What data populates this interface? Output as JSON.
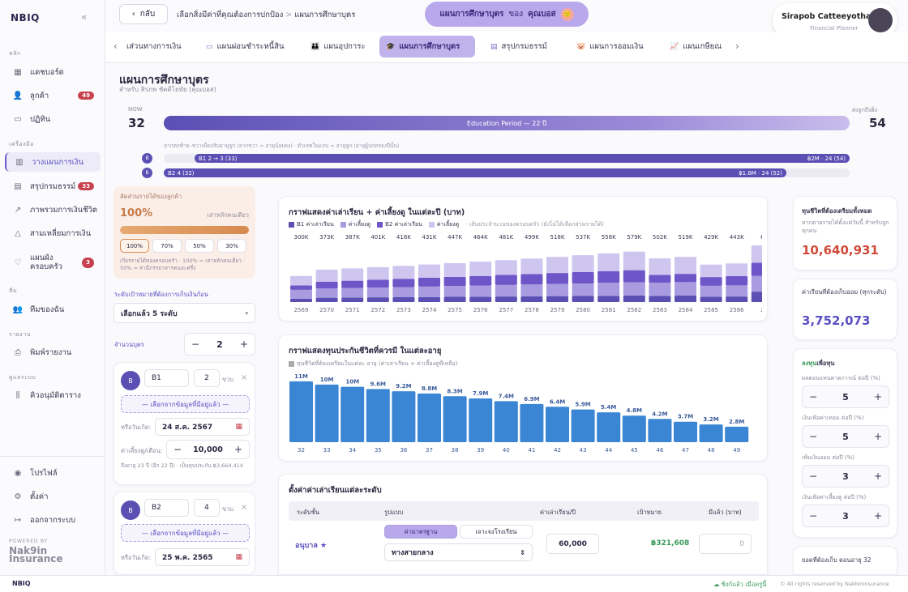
{
  "brand": "NBIQ",
  "sidebar": {
    "sec_main": "หลัก",
    "items_main": [
      {
        "label": "แดชบอร์ด"
      },
      {
        "label": "ลูกค้า",
        "count": "49"
      },
      {
        "label": "ปฏิทิน"
      }
    ],
    "sec_tools": "เครื่องมือ",
    "items_tools": [
      {
        "label": "วางแผนการเงิน"
      },
      {
        "label": "สรุปกรมธรรม์",
        "count": "33"
      },
      {
        "label": "ภาพรวมการเงินชีวิต"
      },
      {
        "label": "สามเหลี่ยมการเงิน"
      },
      {
        "label": "แผนผัง ครอบครัว",
        "count": "3"
      }
    ],
    "sec_team": "ทีม",
    "team": "ทีมของฉัน",
    "sec_report": "รายงาน",
    "report": "พิมพ์รายงาน",
    "sec_system": "ดูแลระบบ",
    "system": "คิวอนุมัติตาราง",
    "profile": "โปรไฟล์",
    "settings": "ตั้งค่า",
    "logout": "ออกจากระบบ",
    "powered": "POWERED BY",
    "nakin": "Nak9in Insurance"
  },
  "header": {
    "back": "กลับ",
    "crumb1": "เลือกสิ่งมีค่าที่คุณต้องการปกป้อง",
    "crumb_sep": ">",
    "crumb2": "แผนการศึกษาบุตร",
    "pill_a": "แผนการศึกษาบุตร",
    "pill_b": "ของ",
    "pill_c": "คุณบอส",
    "pill_emoji": "🙂",
    "user_name": "Sirapob Catteeyothai",
    "user_role": "Financial Planner"
  },
  "tabs": [
    "เส่วนทางการเงิน",
    "แผนผ่อนชำระหนี้สิน",
    "แผนอุปการะ",
    "แผนการศึกษาบุตร",
    "สรุปกรมธรรม์",
    "แผนการออมเงิน",
    "แผนเกษียณ"
  ],
  "page": {
    "title": "แผนการศึกษาบุตร",
    "subtitle": "สำหรับ สิรภพ ชัตตีโยทัย (คุณบอส)"
  },
  "timeline": {
    "now_label": "NOW",
    "now_value": "32",
    "end_label": "ส่งลูกถึงฝั่ง",
    "end_value": "54",
    "period": "Education Period — 22 ปี",
    "hint": "ลากตกซ้าย–ขวาเพื่อปรับอายุลูก (ลากขวา = อายุน้อยลง) · ตัวเลขในแถบ = อายุลูก (อายุผู้ปกครองปีนั้น)",
    "rows": [
      {
        "dot": "B",
        "left": "B1 2 → 3 (33)",
        "right": "฿2M · 24 (54)"
      },
      {
        "dot": "B",
        "left": "B2 4 (32)",
        "right": "฿1.8M · 24 (52)"
      }
    ]
  },
  "left": {
    "share_title": "สัดส่วนรายได้ของลูกค้า",
    "share_value": "100%",
    "share_side": "เสาหลักคนเดียว",
    "share_opts": [
      "100%",
      "70%",
      "50%",
      "30%"
    ],
    "share_note": "เกียรรายได้ของครอบครัว · 100% = เสาหลักคนเดียว · 50% = สามีภรรยาหารคนละครึ่ง",
    "goal_label": "ระดับเป้าหมายที่ต้องการเก็บเงินก้อน",
    "goal_select": "เลือกแล้ว 5 ระดับ",
    "kids_label": "จำนวนบุตร",
    "kids_value": "2",
    "child1": {
      "name": "B1",
      "age": "2",
      "unit": "ขวบ",
      "select": "— เลือกจากข้อมูลที่มีอยู่แล้ว —",
      "dob_label": "หรือวันเกิด:",
      "dob": "24 ส.ค. 2567",
      "cost_label": "ค่าเลี้ยงดู/เดือน:",
      "cost": "10,000",
      "note": "ถึงอายุ 23 ปี (อีก 22 ปี) · เป็นทุนประกัน ฿3,664,414"
    },
    "child2": {
      "name": "B2",
      "age": "4",
      "unit": "ขวบ",
      "select": "— เลือกจากข้อมูลที่มีอยู่แล้ว —",
      "dob_label": "หรือวันเกิด:",
      "dob": "25 พ.ค. 2565"
    }
  },
  "chart1": {
    "title": "กราฟแสดงค่าเล่าเรียน + ค่าเลี้ยงดู ในแต่ละปี (บาท)",
    "legend": [
      "B1 ค่าเล่าเรียน",
      "ค่าเลี้ยงดู",
      "B2 ค่าเล่าเรียน",
      "ค่าเลี้ยงดู"
    ],
    "legend_note": "· เส้นประจำนวนของครอบครัว (ยังไม่ได้เลือกส่วนรายได้)",
    "colors": [
      "#5b4fb4",
      "#a89be0",
      "#6f56c8",
      "#cfc6f0"
    ]
  },
  "chart2": {
    "title": "กราฟแสดงทุนประกันชีวิตที่ควรมี ในแต่ละอายุ",
    "legend": "ทุนชีวิตที่ต้องเตรียมในแต่ละ อายุ (ค่าเล่าเรียน + ค่าเลี้ยงดูที่เหลือ)",
    "color": "#3a86d4"
  },
  "chart_data": [
    {
      "type": "bar",
      "title": "กราฟแสดงค่าเล่าเรียน + ค่าเลี้ยงดู ในแต่ละปี (บาท)",
      "categories": [
        "2569",
        "2570",
        "2571",
        "2572",
        "2573",
        "2574",
        "2575",
        "2576",
        "2577",
        "2578",
        "2579",
        "2580",
        "2581",
        "2582",
        "2583",
        "2584",
        "2585",
        "2586",
        "2"
      ],
      "totals": [
        "300K",
        "373K",
        "387K",
        "401K",
        "416K",
        "431K",
        "447K",
        "464K",
        "481K",
        "499K",
        "518K",
        "537K",
        "558K",
        "579K",
        "502K",
        "519K",
        "429K",
        "443K",
        "6"
      ],
      "series": [
        {
          "name": "B1 ค่าเล่าเรียน",
          "values": [
            40,
            50,
            52,
            54,
            56,
            58,
            60,
            62,
            64,
            66,
            68,
            70,
            72,
            74,
            72,
            74,
            62,
            64,
            120
          ]
        },
        {
          "name": "ค่าเลี้ยงดู",
          "values": [
            100,
            105,
            108,
            112,
            116,
            120,
            124,
            128,
            132,
            136,
            140,
            144,
            148,
            152,
            150,
            155,
            125,
            128,
            180
          ]
        },
        {
          "name": "B2 ค่าเล่าเรียน",
          "values": [
            50,
            80,
            85,
            90,
            95,
            100,
            105,
            110,
            115,
            120,
            125,
            130,
            135,
            140,
            90,
            95,
            100,
            105,
            150
          ]
        },
        {
          "name": "ค่าเลี้ยงดู",
          "values": [
            110,
            138,
            142,
            145,
            149,
            153,
            158,
            164,
            170,
            177,
            185,
            193,
            203,
            213,
            190,
            195,
            142,
            146,
            200
          ]
        }
      ],
      "ylim": [
        0,
        650
      ]
    },
    {
      "type": "bar",
      "title": "กราฟแสดงทุนประกันชีวิตที่ควรมี ในแต่ละอายุ",
      "categories": [
        "32",
        "33",
        "34",
        "35",
        "36",
        "37",
        "38",
        "39",
        "40",
        "41",
        "42",
        "43",
        "44",
        "45",
        "46",
        "47",
        "48",
        "49"
      ],
      "labels": [
        "11M",
        "10M",
        "10M",
        "9.6M",
        "9.2M",
        "8.8M",
        "8.3M",
        "7.9M",
        "7.4M",
        "6.9M",
        "6.4M",
        "5.9M",
        "5.4M",
        "4.8M",
        "4.2M",
        "3.7M",
        "3.2M",
        "2.8M"
      ],
      "values": [
        11,
        10.4,
        10,
        9.6,
        9.2,
        8.8,
        8.3,
        7.9,
        7.4,
        6.9,
        6.4,
        5.9,
        5.4,
        4.8,
        4.2,
        3.7,
        3.2,
        2.8
      ],
      "ylim": [
        0,
        12
      ]
    }
  ],
  "table": {
    "title": "ตั้งค่าค่าเล่าเรียนแต่ละระดับ",
    "headers": [
      "ระดับชั้น",
      "รูปแบบ",
      "ค่าเล่าเรียน/ปี",
      "เป้าหมาย",
      "มีแล้ว (บาท)"
    ],
    "row": {
      "level": "อนุบาล ★",
      "opt1": "ค่ามาตรฐาน",
      "opt2": "เจาะจงโรงเรียน",
      "select": "ทางสายกลาง",
      "fee": "60,000",
      "target": "฿321,608",
      "have": "0"
    }
  },
  "right": {
    "need_title": "ทุนชีวิตที่ต้องเตรียมทั้งหมด",
    "need_desc": "หากตายรายได้ตั้งแต่วันนี้ สำหรับลูกทุกคน",
    "need_value": "10,640,931",
    "save_title": "ค่าเรียนที่ต้องเก็บออม (ทุกระดับ)",
    "save_value": "3,752,073",
    "invest_label": "ลงทุน",
    "invest_label2": "เพื่อทุน",
    "p1": "ผลตอบแทนคาดการณ์ ต่อปี (%)",
    "v1": "5",
    "p2": "เงินเฟ้อค่าเทอม ต่อปี (%)",
    "v2": "5",
    "p3": "เพิ่มเงินออม ต่อปี (%)",
    "v3": "3",
    "p4": "เงินเฟ้อค่าเลี้ยงดู ต่อปี (%)",
    "v4": "3",
    "monthly": "ยอดที่ต้องเก็บ ตอนอายุ 32"
  },
  "footer": {
    "brand": "NBIQ",
    "sync": "ซิงก์แล้ว เมื่อครู่นี้",
    "copy": "© All rights reserved by Nakbininsurance"
  }
}
